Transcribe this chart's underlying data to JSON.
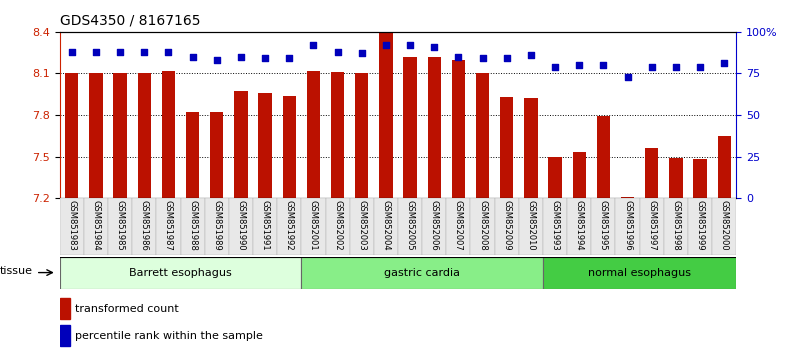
{
  "title": "GDS4350 / 8167165",
  "samples": [
    "GSM851983",
    "GSM851984",
    "GSM851985",
    "GSM851986",
    "GSM851987",
    "GSM851988",
    "GSM851989",
    "GSM851990",
    "GSM851991",
    "GSM851992",
    "GSM852001",
    "GSM852002",
    "GSM852003",
    "GSM852004",
    "GSM852005",
    "GSM852006",
    "GSM852007",
    "GSM852008",
    "GSM852009",
    "GSM852010",
    "GSM851993",
    "GSM851994",
    "GSM851995",
    "GSM851996",
    "GSM851997",
    "GSM851998",
    "GSM851999",
    "GSM852000"
  ],
  "bar_values": [
    8.1,
    8.1,
    8.1,
    8.1,
    8.12,
    7.82,
    7.82,
    7.97,
    7.96,
    7.94,
    8.12,
    8.11,
    8.1,
    8.4,
    8.22,
    8.22,
    8.2,
    8.1,
    7.93,
    7.92,
    7.5,
    7.53,
    7.79,
    7.21,
    7.56,
    7.49,
    7.48,
    7.65
  ],
  "percentile_values": [
    88,
    88,
    88,
    88,
    88,
    85,
    83,
    85,
    84,
    84,
    92,
    88,
    87,
    92,
    92,
    91,
    85,
    84,
    84,
    86,
    79,
    80,
    80,
    73,
    79,
    79,
    79,
    81
  ],
  "ylim_left": [
    7.2,
    8.4
  ],
  "ylim_right": [
    0,
    100
  ],
  "yticks_left": [
    7.2,
    7.5,
    7.8,
    8.1,
    8.4
  ],
  "yticks_right": [
    0,
    25,
    50,
    75,
    100
  ],
  "ytick_labels_right": [
    "0",
    "25",
    "50",
    "75",
    "100%"
  ],
  "groups": [
    {
      "label": "Barrett esophagus",
      "start": 0,
      "end": 10,
      "color": "#ddffdd"
    },
    {
      "label": "gastric cardia",
      "start": 10,
      "end": 20,
      "color": "#88ee88"
    },
    {
      "label": "normal esophagus",
      "start": 20,
      "end": 28,
      "color": "#44cc44"
    }
  ],
  "bar_color": "#bb1100",
  "dot_color": "#0000bb",
  "bg_color": "#ffffff",
  "plot_bg": "#ffffff",
  "tissue_label": "tissue",
  "legend_bar": "transformed count",
  "legend_dot": "percentile rank within the sample",
  "title_fontsize": 10,
  "tick_fontsize": 8,
  "label_fontsize": 7
}
